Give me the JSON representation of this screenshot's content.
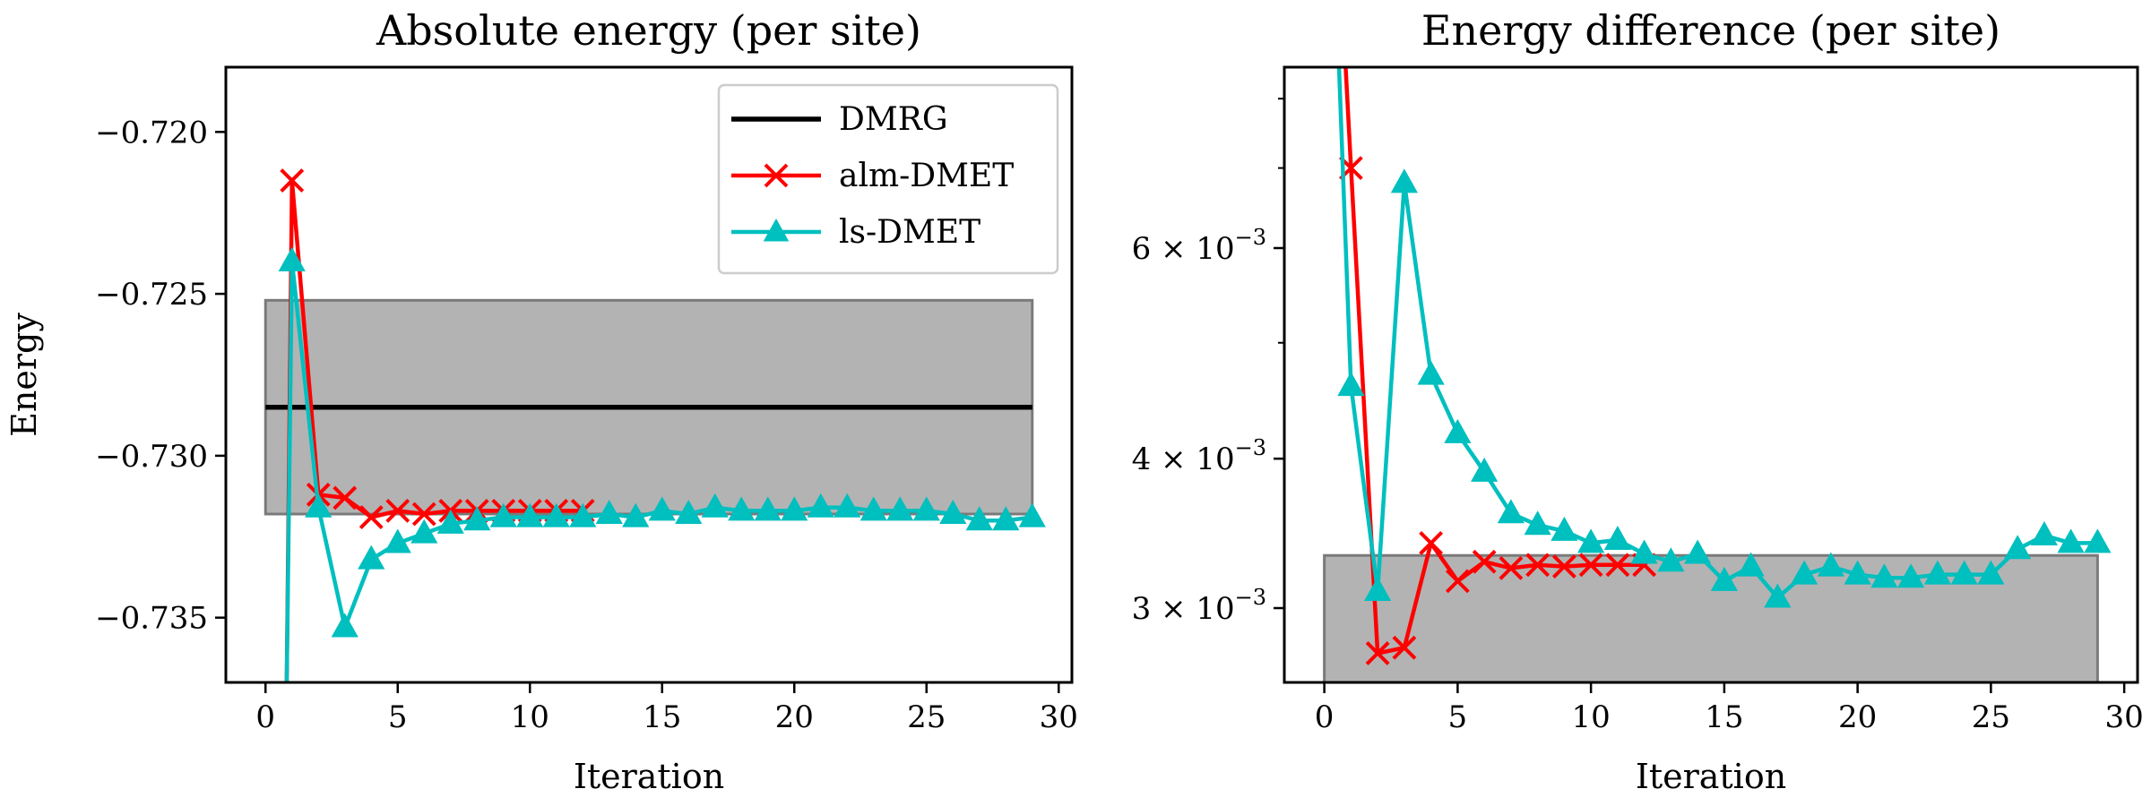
{
  "chart_data": [
    {
      "type": "line",
      "title": "Absolute energy (per site)",
      "xlabel": "Iteration",
      "ylabel": "Energy",
      "xlim": [
        -1.5,
        30.5
      ],
      "ylim": [
        -0.737,
        -0.718
      ],
      "xticks": [
        0,
        5,
        10,
        15,
        20,
        25,
        30
      ],
      "xtick_labels": [
        "0",
        "5",
        "10",
        "15",
        "20",
        "25",
        "30"
      ],
      "yticks": [
        -0.72,
        -0.725,
        -0.73,
        -0.735
      ],
      "ytick_labels": [
        "−0.720",
        "−0.725",
        "−0.730",
        "−0.735"
      ],
      "shaded_band": {
        "x": [
          0,
          29
        ],
        "y": [
          -0.7318,
          -0.7252
        ],
        "color": "#b3b3b3"
      },
      "legend_position": "top-right",
      "series": [
        {
          "name": "DMRG",
          "color": "#000000",
          "marker": "none",
          "x": [
            0,
            29
          ],
          "y": [
            -0.7285,
            -0.7285
          ]
        },
        {
          "name": "alm-DMET",
          "color": "#ff0000",
          "marker": "x",
          "x": [
            0.8,
            1,
            2,
            3,
            4,
            5,
            6,
            7,
            8,
            9,
            10,
            11,
            12
          ],
          "y": [
            -0.737,
            -0.7215,
            -0.7312,
            -0.7313,
            -0.7319,
            -0.7317,
            -0.7318,
            -0.7317,
            -0.7317,
            -0.7317,
            -0.7317,
            -0.7317,
            -0.7317
          ]
        },
        {
          "name": "ls-DMET",
          "color": "#00bfbf",
          "marker": "triangle",
          "x": [
            0.8,
            1,
            2,
            3,
            4,
            5,
            6,
            7,
            8,
            9,
            10,
            11,
            12,
            13,
            14,
            15,
            16,
            17,
            18,
            19,
            20,
            21,
            22,
            23,
            24,
            25,
            26,
            27,
            28,
            29
          ],
          "y": [
            -0.737,
            -0.724,
            -0.7316,
            -0.7353,
            -0.7332,
            -0.7327,
            -0.7324,
            -0.7321,
            -0.732,
            -0.7319,
            -0.7319,
            -0.7319,
            -0.7319,
            -0.7318,
            -0.7319,
            -0.7317,
            -0.7318,
            -0.7316,
            -0.7317,
            -0.7317,
            -0.7317,
            -0.7316,
            -0.7316,
            -0.7317,
            -0.7317,
            -0.7317,
            -0.7318,
            -0.732,
            -0.732,
            -0.7319
          ]
        }
      ]
    },
    {
      "type": "line",
      "title": "Energy difference (per site)",
      "xlabel": "Iteration",
      "ylabel": "",
      "yscale": "log",
      "xlim": [
        -1.5,
        30.5
      ],
      "ylim": [
        0.0026,
        0.0085
      ],
      "xticks": [
        0,
        5,
        10,
        15,
        20,
        25,
        30
      ],
      "xtick_labels": [
        "0",
        "5",
        "10",
        "15",
        "20",
        "25",
        "30"
      ],
      "yticks": [
        0.006,
        0.004,
        0.003
      ],
      "ytick_labels": [
        {
          "mant": "6",
          "exp": "−3"
        },
        {
          "mant": "4",
          "exp": "−3"
        },
        {
          "mant": "3",
          "exp": "−3"
        }
      ],
      "minor_yticks": [
        0.005,
        0.007,
        0.008
      ],
      "shaded_band": {
        "x": [
          0,
          29
        ],
        "y": [
          0.0026,
          0.00332
        ],
        "color": "#b3b3b3"
      },
      "series": [
        {
          "name": "alm-DMET",
          "color": "#ff0000",
          "marker": "x",
          "x": [
            0.8,
            1,
            2,
            3,
            4,
            5,
            6,
            7,
            8,
            9,
            10,
            11,
            12
          ],
          "y": [
            0.0085,
            0.007,
            0.00275,
            0.00278,
            0.0034,
            0.00316,
            0.00328,
            0.00324,
            0.00326,
            0.00325,
            0.00326,
            0.00326,
            0.00326
          ]
        },
        {
          "name": "ls-DMET",
          "color": "#00bfbf",
          "marker": "triangle",
          "x": [
            0.55,
            1,
            2,
            3,
            4,
            5,
            6,
            7,
            8,
            9,
            10,
            11,
            12,
            13,
            14,
            15,
            16,
            17,
            18,
            19,
            20,
            21,
            22,
            23,
            24,
            25,
            26,
            27,
            28,
            29
          ],
          "y": [
            0.0085,
            0.0046,
            0.0031,
            0.0068,
            0.0047,
            0.0042,
            0.0039,
            0.0036,
            0.00352,
            0.00348,
            0.0034,
            0.00342,
            0.00333,
            0.00328,
            0.00333,
            0.00316,
            0.00325,
            0.00306,
            0.0032,
            0.00325,
            0.0032,
            0.00318,
            0.00318,
            0.0032,
            0.0032,
            0.0032,
            0.00336,
            0.00345,
            0.0034,
            0.0034
          ]
        }
      ]
    }
  ]
}
